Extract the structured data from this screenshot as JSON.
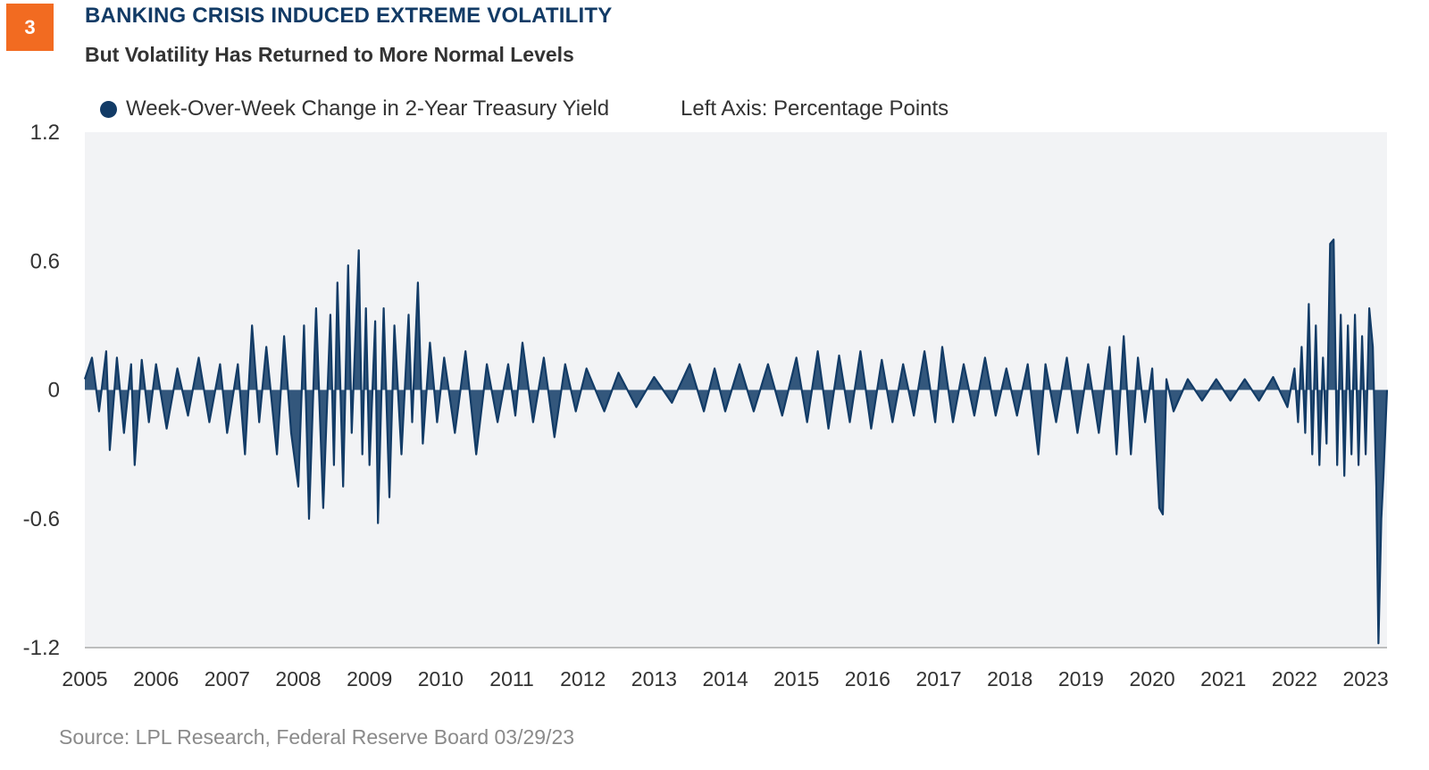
{
  "badge": "3",
  "title": "BANKING CRISIS INDUCED EXTREME VOLATILITY",
  "subtitle": "But Volatility Has Returned to More Normal Levels",
  "legend_label": "Week-Over-Week Change in 2-Year Treasury Yield",
  "axis_note": "Left Axis: Percentage Points",
  "source": "Source: LPL Research, Federal Reserve Board  03/29/23",
  "colors": {
    "series": "#123b66",
    "plot_bg": "#f2f3f5",
    "badge": "#f26b21",
    "title": "#123b66"
  },
  "chart_data": {
    "type": "area",
    "title": "BANKING CRISIS INDUCED EXTREME VOLATILITY",
    "subtitle": "But Volatility Has Returned to More Normal Levels",
    "xlabel": "",
    "ylabel": "Left Axis: Percentage Points",
    "ylim": [
      -1.2,
      1.2
    ],
    "yticks": [
      "1.2",
      "0.6",
      "0",
      "-0.6",
      "-1.2"
    ],
    "xlim": [
      2005.0,
      2023.3
    ],
    "xticks": [
      "2005",
      "2006",
      "2007",
      "2008",
      "2009",
      "2010",
      "2011",
      "2012",
      "2013",
      "2014",
      "2015",
      "2016",
      "2017",
      "2018",
      "2019",
      "2020",
      "2021",
      "2022",
      "2023"
    ],
    "grid": false,
    "legend": "top-left",
    "series": [
      {
        "name": "Week-Over-Week Change in 2-Year Treasury Yield",
        "values": [
          [
            2005.0,
            0.05
          ],
          [
            2005.1,
            0.15
          ],
          [
            2005.2,
            -0.1
          ],
          [
            2005.3,
            0.18
          ],
          [
            2005.35,
            -0.28
          ],
          [
            2005.45,
            0.15
          ],
          [
            2005.55,
            -0.2
          ],
          [
            2005.65,
            0.12
          ],
          [
            2005.7,
            -0.35
          ],
          [
            2005.8,
            0.14
          ],
          [
            2005.9,
            -0.15
          ],
          [
            2006.0,
            0.12
          ],
          [
            2006.15,
            -0.18
          ],
          [
            2006.3,
            0.1
          ],
          [
            2006.45,
            -0.12
          ],
          [
            2006.6,
            0.15
          ],
          [
            2006.75,
            -0.15
          ],
          [
            2006.9,
            0.12
          ],
          [
            2007.0,
            -0.2
          ],
          [
            2007.15,
            0.12
          ],
          [
            2007.25,
            -0.3
          ],
          [
            2007.35,
            0.3
          ],
          [
            2007.45,
            -0.15
          ],
          [
            2007.55,
            0.2
          ],
          [
            2007.7,
            -0.3
          ],
          [
            2007.8,
            0.25
          ],
          [
            2007.9,
            -0.2
          ],
          [
            2008.0,
            -0.45
          ],
          [
            2008.08,
            0.3
          ],
          [
            2008.15,
            -0.6
          ],
          [
            2008.25,
            0.38
          ],
          [
            2008.35,
            -0.55
          ],
          [
            2008.45,
            0.35
          ],
          [
            2008.5,
            -0.35
          ],
          [
            2008.55,
            0.5
          ],
          [
            2008.63,
            -0.45
          ],
          [
            2008.7,
            0.58
          ],
          [
            2008.75,
            -0.2
          ],
          [
            2008.85,
            0.65
          ],
          [
            2008.9,
            -0.3
          ],
          [
            2008.95,
            0.38
          ],
          [
            2009.0,
            -0.35
          ],
          [
            2009.08,
            0.32
          ],
          [
            2009.12,
            -0.62
          ],
          [
            2009.2,
            0.38
          ],
          [
            2009.28,
            -0.5
          ],
          [
            2009.35,
            0.3
          ],
          [
            2009.45,
            -0.3
          ],
          [
            2009.55,
            0.35
          ],
          [
            2009.6,
            -0.15
          ],
          [
            2009.68,
            0.5
          ],
          [
            2009.75,
            -0.25
          ],
          [
            2009.85,
            0.22
          ],
          [
            2009.95,
            -0.15
          ],
          [
            2010.05,
            0.15
          ],
          [
            2010.2,
            -0.2
          ],
          [
            2010.35,
            0.18
          ],
          [
            2010.5,
            -0.3
          ],
          [
            2010.65,
            0.12
          ],
          [
            2010.8,
            -0.15
          ],
          [
            2010.95,
            0.12
          ],
          [
            2011.05,
            -0.12
          ],
          [
            2011.15,
            0.22
          ],
          [
            2011.3,
            -0.15
          ],
          [
            2011.45,
            0.15
          ],
          [
            2011.6,
            -0.22
          ],
          [
            2011.75,
            0.12
          ],
          [
            2011.9,
            -0.1
          ],
          [
            2012.05,
            0.1
          ],
          [
            2012.3,
            -0.1
          ],
          [
            2012.5,
            0.08
          ],
          [
            2012.75,
            -0.08
          ],
          [
            2013.0,
            0.06
          ],
          [
            2013.25,
            -0.06
          ],
          [
            2013.5,
            0.12
          ],
          [
            2013.7,
            -0.1
          ],
          [
            2013.85,
            0.1
          ],
          [
            2014.0,
            -0.1
          ],
          [
            2014.2,
            0.12
          ],
          [
            2014.4,
            -0.1
          ],
          [
            2014.6,
            0.12
          ],
          [
            2014.8,
            -0.12
          ],
          [
            2015.0,
            0.15
          ],
          [
            2015.15,
            -0.15
          ],
          [
            2015.3,
            0.18
          ],
          [
            2015.45,
            -0.18
          ],
          [
            2015.6,
            0.16
          ],
          [
            2015.75,
            -0.15
          ],
          [
            2015.9,
            0.18
          ],
          [
            2016.05,
            -0.18
          ],
          [
            2016.2,
            0.14
          ],
          [
            2016.35,
            -0.15
          ],
          [
            2016.5,
            0.12
          ],
          [
            2016.65,
            -0.12
          ],
          [
            2016.8,
            0.18
          ],
          [
            2016.95,
            -0.15
          ],
          [
            2017.05,
            0.2
          ],
          [
            2017.2,
            -0.15
          ],
          [
            2017.35,
            0.12
          ],
          [
            2017.5,
            -0.12
          ],
          [
            2017.65,
            0.15
          ],
          [
            2017.8,
            -0.12
          ],
          [
            2017.95,
            0.1
          ],
          [
            2018.1,
            -0.12
          ],
          [
            2018.25,
            0.12
          ],
          [
            2018.4,
            -0.3
          ],
          [
            2018.5,
            0.12
          ],
          [
            2018.65,
            -0.15
          ],
          [
            2018.8,
            0.15
          ],
          [
            2018.95,
            -0.2
          ],
          [
            2019.1,
            0.12
          ],
          [
            2019.25,
            -0.2
          ],
          [
            2019.4,
            0.2
          ],
          [
            2019.5,
            -0.3
          ],
          [
            2019.6,
            0.25
          ],
          [
            2019.7,
            -0.3
          ],
          [
            2019.8,
            0.15
          ],
          [
            2019.9,
            -0.15
          ],
          [
            2020.0,
            0.1
          ],
          [
            2020.1,
            -0.55
          ],
          [
            2020.15,
            -0.58
          ],
          [
            2020.2,
            0.05
          ],
          [
            2020.3,
            -0.1
          ],
          [
            2020.5,
            0.05
          ],
          [
            2020.7,
            -0.05
          ],
          [
            2020.9,
            0.05
          ],
          [
            2021.1,
            -0.05
          ],
          [
            2021.3,
            0.05
          ],
          [
            2021.5,
            -0.05
          ],
          [
            2021.7,
            0.06
          ],
          [
            2021.9,
            -0.08
          ],
          [
            2022.0,
            0.1
          ],
          [
            2022.05,
            -0.15
          ],
          [
            2022.1,
            0.2
          ],
          [
            2022.15,
            -0.2
          ],
          [
            2022.2,
            0.4
          ],
          [
            2022.25,
            -0.3
          ],
          [
            2022.3,
            0.3
          ],
          [
            2022.35,
            -0.35
          ],
          [
            2022.4,
            0.15
          ],
          [
            2022.45,
            -0.25
          ],
          [
            2022.5,
            0.68
          ],
          [
            2022.55,
            0.7
          ],
          [
            2022.6,
            -0.35
          ],
          [
            2022.65,
            0.35
          ],
          [
            2022.7,
            -0.4
          ],
          [
            2022.75,
            0.3
          ],
          [
            2022.8,
            -0.3
          ],
          [
            2022.85,
            0.35
          ],
          [
            2022.9,
            -0.35
          ],
          [
            2022.95,
            0.25
          ],
          [
            2023.0,
            -0.3
          ],
          [
            2023.05,
            0.38
          ],
          [
            2023.1,
            0.2
          ],
          [
            2023.15,
            -0.45
          ],
          [
            2023.18,
            -1.18
          ],
          [
            2023.22,
            -0.6
          ],
          [
            2023.25,
            -0.4
          ],
          [
            2023.3,
            0.0
          ]
        ]
      }
    ],
    "annotations": [
      "Source: LPL Research, Federal Reserve Board  03/29/23"
    ]
  }
}
